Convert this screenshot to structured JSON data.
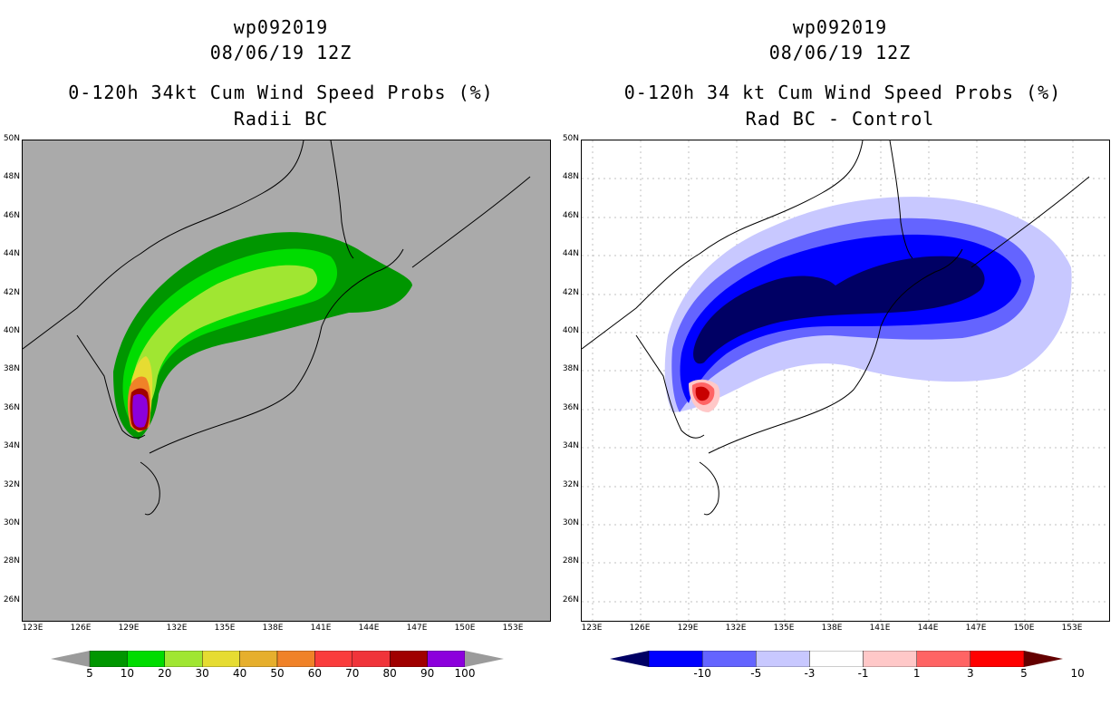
{
  "left": {
    "storm": "wp092019",
    "datetime": "08/06/19 12Z",
    "title": "0-120h 34kt Cum Wind Speed Probs (%)",
    "subtitle": "Radii BC",
    "background": "#aaaaaa",
    "colorbar": {
      "labels": [
        "5",
        "10",
        "20",
        "30",
        "40",
        "50",
        "60",
        "70",
        "80",
        "90",
        "100"
      ],
      "colors": [
        "#009600",
        "#00dc00",
        "#a0e632",
        "#e6dc32",
        "#e6af2d",
        "#f08228",
        "#fa3c3c",
        "#f0343a",
        "#a00000",
        "#8c00dc",
        "#9b9b9b"
      ]
    }
  },
  "right": {
    "storm": "wp092019",
    "datetime": "08/06/19 12Z",
    "title": "0-120h 34 kt Cum Wind Speed Probs (%)",
    "subtitle": "Rad BC - Control",
    "background": "#ffffff",
    "colorbar": {
      "labels": [
        "-10",
        "-5",
        "-3",
        "-1",
        "1",
        "3",
        "5",
        "10"
      ],
      "colors": [
        "#000064",
        "#0000ff",
        "#6464ff",
        "#c8c8ff",
        "#ffffff",
        "#ffc8c8",
        "#ff6464",
        "#ff0000",
        "#640000"
      ]
    }
  },
  "axes": {
    "lat_labels": [
      "50N",
      "48N",
      "46N",
      "44N",
      "42N",
      "40N",
      "38N",
      "36N",
      "34N",
      "32N",
      "30N",
      "28N",
      "26N"
    ],
    "lon_labels": [
      "123E",
      "126E",
      "129E",
      "132E",
      "135E",
      "138E",
      "141E",
      "144E",
      "147E",
      "150E",
      "153E"
    ]
  }
}
